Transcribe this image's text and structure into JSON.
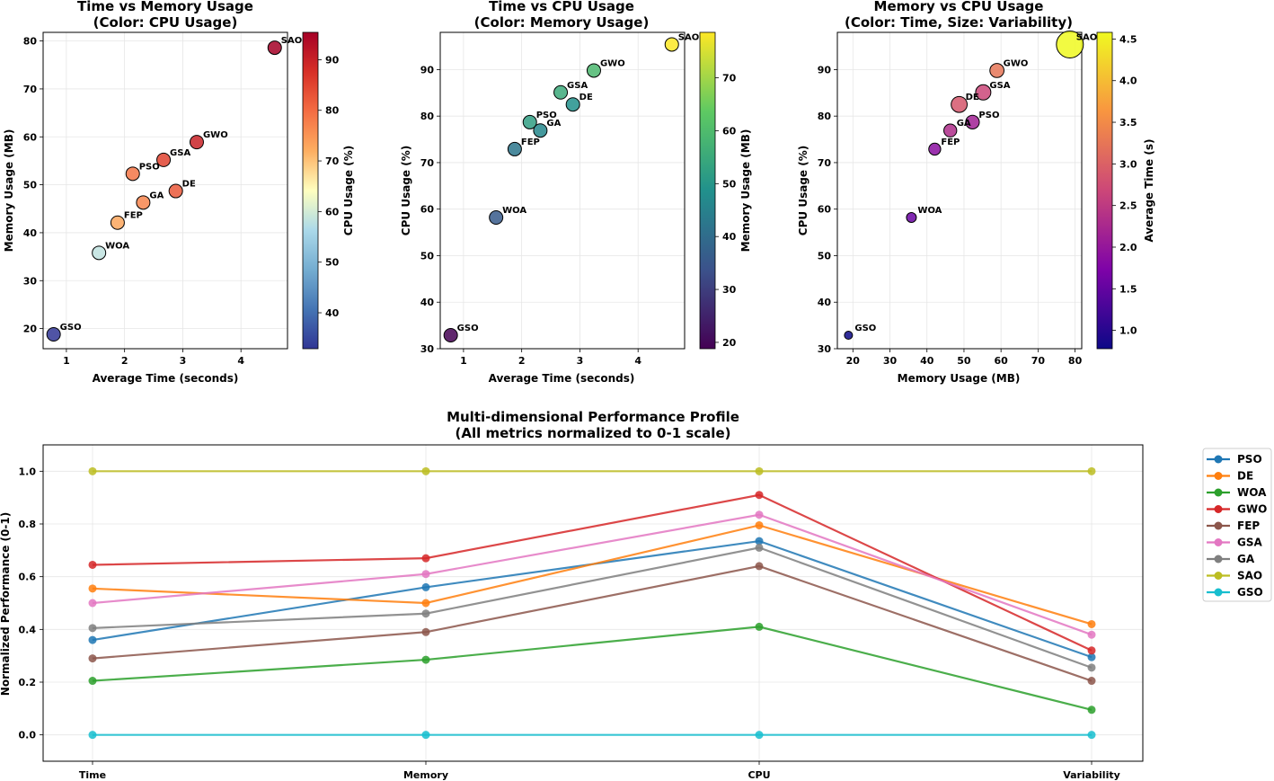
{
  "chart_data": [
    {
      "type": "scatter",
      "id": "time-memory",
      "title": [
        "Time vs Memory Usage",
        "(Color: CPU Usage)"
      ],
      "xlabel": "Average Time (seconds)",
      "ylabel": "Memory Usage (MB)",
      "xlim": [
        0.6,
        4.8
      ],
      "ylim": [
        15.8,
        81.8
      ],
      "xticks": [
        1,
        2,
        3,
        4
      ],
      "yticks": [
        20,
        30,
        40,
        50,
        60,
        70,
        80
      ],
      "colorbar": {
        "label": "CPU Usage (%)",
        "colormap": "RdYlBu_r",
        "range": [
          32.9,
          95.4
        ],
        "ticks": [
          40,
          50,
          60,
          70,
          80,
          90
        ]
      },
      "x_key": "time",
      "y_key": "memory",
      "color_key": "cpu"
    },
    {
      "type": "scatter",
      "id": "time-cpu",
      "title": [
        "Time vs CPU Usage",
        "(Color: Memory Usage)"
      ],
      "xlabel": "Average Time (seconds)",
      "ylabel": "CPU Usage (%)",
      "xlim": [
        0.6,
        4.8
      ],
      "ylim": [
        30,
        98
      ],
      "xticks": [
        1,
        2,
        3,
        4
      ],
      "yticks": [
        30,
        40,
        50,
        60,
        70,
        80,
        90
      ],
      "colorbar": {
        "label": "Memory Usage (MB)",
        "colormap": "viridis",
        "range": [
          18.8,
          78.6
        ],
        "ticks": [
          20,
          30,
          40,
          50,
          60,
          70
        ]
      },
      "x_key": "time",
      "y_key": "cpu",
      "color_key": "memory"
    },
    {
      "type": "scatter",
      "id": "memory-cpu",
      "title": [
        "Memory vs CPU Usage",
        "(Color: Time, Size: Variability)"
      ],
      "xlabel": "Memory Usage (MB)",
      "ylabel": "CPU Usage (%)",
      "xlim": [
        15.8,
        81.8
      ],
      "ylim": [
        30,
        98
      ],
      "xticks": [
        20,
        30,
        40,
        50,
        60,
        70,
        80
      ],
      "yticks": [
        30,
        40,
        50,
        60,
        70,
        80,
        90
      ],
      "colorbar": {
        "label": "Average Time (s)",
        "colormap": "plasma",
        "range": [
          0.78,
          4.58
        ],
        "ticks": [
          1.0,
          1.5,
          2.0,
          2.5,
          3.0,
          3.5,
          4.0,
          4.5
        ]
      },
      "x_key": "memory",
      "y_key": "cpu",
      "color_key": "time",
      "size_key": "variability"
    },
    {
      "type": "line",
      "id": "profile",
      "title": [
        "Multi-dimensional Performance Profile",
        "(All metrics normalized to 0-1 scale)"
      ],
      "xlabel": "",
      "ylabel": "Normalized Performance (0-1)",
      "categories": [
        "Time",
        "Memory",
        "CPU",
        "Variability"
      ],
      "ylim": [
        -0.1,
        1.1
      ],
      "yticks": [
        "0.0",
        "0.2",
        "0.4",
        "0.6",
        "0.8",
        "1.0"
      ],
      "legend_position": "outside-right",
      "series": [
        {
          "name": "PSO",
          "color": "#1f77b4",
          "values": [
            0.36,
            0.56,
            0.735,
            0.295
          ]
        },
        {
          "name": "DE",
          "color": "#ff7f0e",
          "values": [
            0.555,
            0.5,
            0.795,
            0.42
          ]
        },
        {
          "name": "WOA",
          "color": "#2ca02c",
          "values": [
            0.205,
            0.285,
            0.41,
            0.095
          ]
        },
        {
          "name": "GWO",
          "color": "#d62728",
          "values": [
            0.645,
            0.67,
            0.91,
            0.32
          ]
        },
        {
          "name": "FEP",
          "color": "#8c564b",
          "values": [
            0.29,
            0.39,
            0.64,
            0.205
          ]
        },
        {
          "name": "GSA",
          "color": "#e377c2",
          "values": [
            0.5,
            0.61,
            0.835,
            0.38
          ]
        },
        {
          "name": "GA",
          "color": "#7f7f7f",
          "values": [
            0.405,
            0.46,
            0.71,
            0.255
          ]
        },
        {
          "name": "SAO",
          "color": "#bcbd22",
          "values": [
            1.0,
            1.0,
            1.0,
            1.0
          ]
        },
        {
          "name": "GSO",
          "color": "#17becf",
          "values": [
            0.0,
            0.0,
            0.0,
            0.0
          ]
        }
      ]
    }
  ],
  "algorithms": [
    {
      "name": "GSO",
      "time": 0.78,
      "memory": 18.8,
      "cpu": 32.9,
      "variability": 0.0
    },
    {
      "name": "WOA",
      "time": 1.56,
      "memory": 35.8,
      "cpu": 58.2,
      "variability": 0.095
    },
    {
      "name": "FEP",
      "time": 1.88,
      "memory": 42.1,
      "cpu": 72.9,
      "variability": 0.205
    },
    {
      "name": "PSO",
      "time": 2.14,
      "memory": 52.3,
      "cpu": 78.7,
      "variability": 0.295
    },
    {
      "name": "GA",
      "time": 2.32,
      "memory": 46.3,
      "cpu": 76.9,
      "variability": 0.255
    },
    {
      "name": "GSA",
      "time": 2.67,
      "memory": 55.2,
      "cpu": 85.1,
      "variability": 0.38
    },
    {
      "name": "DE",
      "time": 2.88,
      "memory": 48.7,
      "cpu": 82.5,
      "variability": 0.42
    },
    {
      "name": "GWO",
      "time": 3.24,
      "memory": 58.9,
      "cpu": 89.8,
      "variability": 0.32
    },
    {
      "name": "SAO",
      "time": 4.58,
      "memory": 78.6,
      "cpu": 95.4,
      "variability": 1.0
    }
  ]
}
